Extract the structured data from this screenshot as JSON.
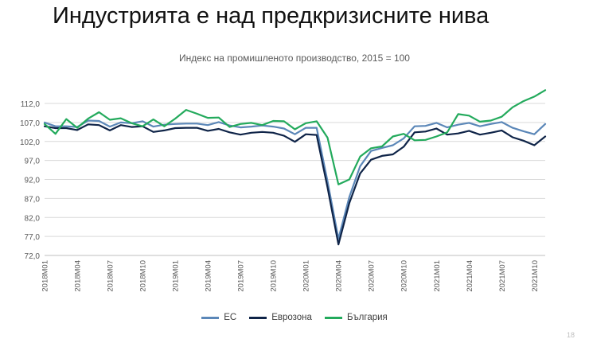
{
  "slide": {
    "title": "Индустрията е над предкризисните нива",
    "page_number": "18"
  },
  "colors": {
    "eu": "#5B87B8",
    "eurozone": "#0F2448",
    "bulgaria": "#23AA5C",
    "grid": "#d9d9d9",
    "tick_text": "#595959"
  },
  "chart_data": {
    "type": "line",
    "title": "Индекс на промишленото производство, 2015 = 100",
    "xlabel": "",
    "ylabel": "",
    "ylim": [
      72.0,
      112.0
    ],
    "yticks": [
      "72,0",
      "77,0",
      "82,0",
      "87,0",
      "92,0",
      "97,0",
      "102,0",
      "107,0",
      "112,0"
    ],
    "ytick_values": [
      72,
      77,
      82,
      87,
      92,
      97,
      102,
      107,
      112
    ],
    "x": [
      "2018M01",
      "2018M02",
      "2018M03",
      "2018M04",
      "2018M05",
      "2018M06",
      "2018M07",
      "2018M08",
      "2018M09",
      "2018M10",
      "2018M11",
      "2018M12",
      "2019M01",
      "2019M02",
      "2019M03",
      "2019M04",
      "2019M05",
      "2019M06",
      "2019M07",
      "2019M08",
      "2019M09",
      "2019M10",
      "2019M11",
      "2019M12",
      "2020M01",
      "2020M02",
      "2020M03",
      "2020M04",
      "2020M05",
      "2020M06",
      "2020M07",
      "2020M08",
      "2020M09",
      "2020M10",
      "2020M11",
      "2020M12",
      "2021M01",
      "2021M02",
      "2021M03",
      "2021M04",
      "2021M05",
      "2021M06",
      "2021M07",
      "2021M08",
      "2021M09",
      "2021M10",
      "2021M11"
    ],
    "xtick_labels": [
      "2018M01",
      "2018M04",
      "2018M07",
      "2018M10",
      "2019M01",
      "2019M04",
      "2019M07",
      "2019M10",
      "2020M01",
      "2020M04",
      "2020M07",
      "2020M10",
      "2021M01",
      "2021M04",
      "2021M07",
      "2021M10"
    ],
    "legend_position": "bottom",
    "grid": true,
    "series": [
      {
        "name": "ЕС",
        "color_key": "eu",
        "values": [
          107.0,
          106.0,
          106.0,
          105.8,
          107.5,
          107.4,
          105.9,
          107.0,
          106.8,
          107.3,
          105.9,
          106.4,
          106.6,
          106.7,
          106.7,
          106.3,
          107.1,
          106.2,
          105.7,
          105.9,
          106.2,
          105.9,
          105.4,
          103.9,
          105.6,
          105.6,
          91.5,
          76.4,
          87.4,
          95.5,
          99.5,
          100.3,
          101.0,
          102.8,
          106.0,
          106.1,
          106.9,
          105.7,
          106.4,
          106.9,
          106.0,
          106.6,
          107.1,
          105.6,
          104.7,
          103.9,
          106.6
        ]
      },
      {
        "name": "Еврозона",
        "color_key": "eurozone",
        "values": [
          106.0,
          105.5,
          105.5,
          105.0,
          106.5,
          106.3,
          104.9,
          106.3,
          105.8,
          106.0,
          104.5,
          104.9,
          105.5,
          105.6,
          105.6,
          104.8,
          105.3,
          104.4,
          103.8,
          104.3,
          104.5,
          104.3,
          103.5,
          101.9,
          103.9,
          103.7,
          89.9,
          74.9,
          85.8,
          93.6,
          97.2,
          98.2,
          98.6,
          100.6,
          104.4,
          104.6,
          105.4,
          103.8,
          104.1,
          104.8,
          103.8,
          104.3,
          104.9,
          103.1,
          102.2,
          101.0,
          103.3
        ]
      },
      {
        "name": "България",
        "color_key": "bulgaria",
        "values": [
          106.6,
          104.0,
          107.9,
          105.6,
          108.0,
          109.7,
          107.7,
          108.1,
          106.8,
          106.0,
          107.8,
          106.0,
          108.0,
          110.3,
          109.3,
          108.2,
          108.3,
          105.8,
          106.6,
          106.9,
          106.3,
          107.4,
          107.3,
          105.2,
          106.8,
          107.3,
          103.0,
          90.7,
          92.0,
          98.0,
          100.2,
          100.7,
          103.3,
          104.0,
          102.3,
          102.4,
          103.3,
          104.4,
          109.2,
          108.8,
          107.2,
          107.5,
          108.5,
          111.0,
          112.6,
          113.8,
          115.5
        ]
      }
    ]
  }
}
